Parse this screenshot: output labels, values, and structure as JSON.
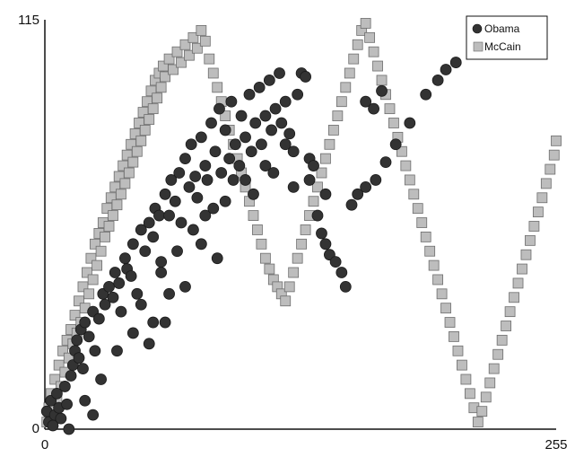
{
  "chart_data": {
    "type": "scatter",
    "title": "",
    "xlabel": "",
    "ylabel": "",
    "xlim": [
      0,
      255
    ],
    "ylim": [
      0,
      115
    ],
    "grid": false,
    "legend_position": "top-right",
    "x_ticks": [
      "0",
      "255"
    ],
    "y_ticks": [
      "115",
      "0"
    ],
    "series": [
      {
        "name": "Obama",
        "marker": "circle",
        "color": "#333333",
        "points": [
          [
            1,
            5
          ],
          [
            2,
            2
          ],
          [
            3,
            8
          ],
          [
            4,
            1
          ],
          [
            5,
            4
          ],
          [
            6,
            10
          ],
          [
            7,
            6
          ],
          [
            8,
            3
          ],
          [
            10,
            12
          ],
          [
            11,
            7
          ],
          [
            12,
            0
          ],
          [
            13,
            15
          ],
          [
            14,
            18
          ],
          [
            15,
            22
          ],
          [
            16,
            25
          ],
          [
            17,
            20
          ],
          [
            18,
            28
          ],
          [
            19,
            17
          ],
          [
            20,
            30
          ],
          [
            22,
            26
          ],
          [
            24,
            33
          ],
          [
            25,
            22
          ],
          [
            27,
            31
          ],
          [
            29,
            38
          ],
          [
            30,
            35
          ],
          [
            32,
            40
          ],
          [
            34,
            37
          ],
          [
            35,
            44
          ],
          [
            37,
            41
          ],
          [
            38,
            33
          ],
          [
            40,
            48
          ],
          [
            41,
            45
          ],
          [
            43,
            43
          ],
          [
            44,
            52
          ],
          [
            46,
            38
          ],
          [
            48,
            56
          ],
          [
            50,
            50
          ],
          [
            52,
            58
          ],
          [
            54,
            54
          ],
          [
            55,
            62
          ],
          [
            57,
            60
          ],
          [
            58,
            47
          ],
          [
            60,
            66
          ],
          [
            62,
            60
          ],
          [
            63,
            70
          ],
          [
            65,
            64
          ],
          [
            67,
            72
          ],
          [
            68,
            58
          ],
          [
            70,
            76
          ],
          [
            72,
            68
          ],
          [
            73,
            80
          ],
          [
            75,
            71
          ],
          [
            76,
            65
          ],
          [
            78,
            82
          ],
          [
            80,
            74
          ],
          [
            81,
            70
          ],
          [
            83,
            86
          ],
          [
            85,
            78
          ],
          [
            87,
            90
          ],
          [
            88,
            72
          ],
          [
            90,
            84
          ],
          [
            92,
            76
          ],
          [
            93,
            92
          ],
          [
            95,
            80
          ],
          [
            97,
            74
          ],
          [
            98,
            88
          ],
          [
            100,
            82
          ],
          [
            102,
            94
          ],
          [
            103,
            78
          ],
          [
            105,
            86
          ],
          [
            107,
            96
          ],
          [
            108,
            80
          ],
          [
            110,
            88
          ],
          [
            112,
            98
          ],
          [
            113,
            84
          ],
          [
            115,
            90
          ],
          [
            117,
            100
          ],
          [
            118,
            86
          ],
          [
            120,
            92
          ],
          [
            122,
            83
          ],
          [
            124,
            78
          ],
          [
            126,
            94
          ],
          [
            128,
            100
          ],
          [
            130,
            99
          ],
          [
            132,
            76
          ],
          [
            134,
            74
          ],
          [
            136,
            60
          ],
          [
            138,
            55
          ],
          [
            140,
            52
          ],
          [
            142,
            49
          ],
          [
            145,
            47
          ],
          [
            148,
            44
          ],
          [
            150,
            40
          ],
          [
            153,
            63
          ],
          [
            156,
            66
          ],
          [
            160,
            68
          ],
          [
            165,
            70
          ],
          [
            170,
            75
          ],
          [
            175,
            80
          ],
          [
            182,
            86
          ],
          [
            190,
            94
          ],
          [
            196,
            98
          ],
          [
            200,
            101
          ],
          [
            205,
            103
          ],
          [
            160,
            92
          ],
          [
            164,
            90
          ],
          [
            168,
            95
          ],
          [
            70,
            40
          ],
          [
            60,
            30
          ],
          [
            52,
            24
          ],
          [
            48,
            35
          ],
          [
            58,
            44
          ],
          [
            66,
            50
          ],
          [
            74,
            56
          ],
          [
            84,
            62
          ],
          [
            94,
            70
          ],
          [
            104,
            66
          ],
          [
            114,
            72
          ],
          [
            124,
            68
          ],
          [
            132,
            70
          ],
          [
            140,
            66
          ],
          [
            80,
            60
          ],
          [
            90,
            64
          ],
          [
            100,
            70
          ],
          [
            110,
            74
          ],
          [
            120,
            80
          ],
          [
            86,
            48
          ],
          [
            78,
            52
          ],
          [
            62,
            38
          ],
          [
            54,
            30
          ],
          [
            44,
            27
          ],
          [
            36,
            22
          ],
          [
            28,
            14
          ],
          [
            20,
            8
          ],
          [
            24,
            4
          ]
        ]
      },
      {
        "name": "McCain",
        "marker": "square",
        "color": "#bdbdbd",
        "points": [
          [
            1,
            2
          ],
          [
            2,
            6
          ],
          [
            3,
            10
          ],
          [
            4,
            4
          ],
          [
            5,
            14
          ],
          [
            6,
            8
          ],
          [
            7,
            18
          ],
          [
            8,
            12
          ],
          [
            9,
            22
          ],
          [
            10,
            16
          ],
          [
            11,
            25
          ],
          [
            12,
            20
          ],
          [
            13,
            28
          ],
          [
            14,
            24
          ],
          [
            15,
            32
          ],
          [
            16,
            27
          ],
          [
            17,
            36
          ],
          [
            18,
            30
          ],
          [
            19,
            40
          ],
          [
            20,
            34
          ],
          [
            21,
            44
          ],
          [
            22,
            38
          ],
          [
            23,
            48
          ],
          [
            24,
            42
          ],
          [
            25,
            52
          ],
          [
            26,
            46
          ],
          [
            27,
            55
          ],
          [
            28,
            50
          ],
          [
            29,
            58
          ],
          [
            30,
            54
          ],
          [
            31,
            62
          ],
          [
            32,
            57
          ],
          [
            33,
            65
          ],
          [
            34,
            60
          ],
          [
            35,
            68
          ],
          [
            36,
            63
          ],
          [
            37,
            71
          ],
          [
            38,
            66
          ],
          [
            39,
            74
          ],
          [
            40,
            69
          ],
          [
            41,
            77
          ],
          [
            42,
            72
          ],
          [
            43,
            80
          ],
          [
            44,
            75
          ],
          [
            45,
            83
          ],
          [
            46,
            78
          ],
          [
            47,
            86
          ],
          [
            48,
            81
          ],
          [
            49,
            89
          ],
          [
            50,
            84
          ],
          [
            51,
            92
          ],
          [
            52,
            87
          ],
          [
            53,
            95
          ],
          [
            54,
            90
          ],
          [
            55,
            98
          ],
          [
            56,
            93
          ],
          [
            57,
            100
          ],
          [
            58,
            96
          ],
          [
            59,
            102
          ],
          [
            60,
            99
          ],
          [
            62,
            104
          ],
          [
            64,
            101
          ],
          [
            66,
            106
          ],
          [
            68,
            103
          ],
          [
            70,
            108
          ],
          [
            72,
            105
          ],
          [
            74,
            110
          ],
          [
            76,
            107
          ],
          [
            78,
            112
          ],
          [
            80,
            109
          ],
          [
            82,
            104
          ],
          [
            84,
            100
          ],
          [
            86,
            96
          ],
          [
            88,
            92
          ],
          [
            90,
            88
          ],
          [
            92,
            84
          ],
          [
            94,
            80
          ],
          [
            96,
            76
          ],
          [
            98,
            72
          ],
          [
            100,
            68
          ],
          [
            102,
            64
          ],
          [
            104,
            60
          ],
          [
            106,
            56
          ],
          [
            108,
            52
          ],
          [
            110,
            48
          ],
          [
            112,
            45
          ],
          [
            114,
            42
          ],
          [
            116,
            40
          ],
          [
            118,
            38
          ],
          [
            120,
            36
          ],
          [
            122,
            40
          ],
          [
            124,
            44
          ],
          [
            126,
            48
          ],
          [
            128,
            52
          ],
          [
            130,
            56
          ],
          [
            132,
            60
          ],
          [
            134,
            64
          ],
          [
            136,
            68
          ],
          [
            138,
            72
          ],
          [
            140,
            76
          ],
          [
            142,
            80
          ],
          [
            144,
            84
          ],
          [
            146,
            88
          ],
          [
            148,
            92
          ],
          [
            150,
            96
          ],
          [
            152,
            100
          ],
          [
            154,
            104
          ],
          [
            156,
            108
          ],
          [
            158,
            112
          ],
          [
            160,
            114
          ],
          [
            162,
            110
          ],
          [
            164,
            106
          ],
          [
            166,
            102
          ],
          [
            168,
            98
          ],
          [
            170,
            94
          ],
          [
            172,
            90
          ],
          [
            174,
            86
          ],
          [
            176,
            82
          ],
          [
            178,
            78
          ],
          [
            180,
            74
          ],
          [
            182,
            70
          ],
          [
            184,
            66
          ],
          [
            186,
            62
          ],
          [
            188,
            58
          ],
          [
            190,
            54
          ],
          [
            192,
            50
          ],
          [
            194,
            46
          ],
          [
            196,
            42
          ],
          [
            198,
            38
          ],
          [
            200,
            34
          ],
          [
            202,
            30
          ],
          [
            204,
            26
          ],
          [
            206,
            22
          ],
          [
            208,
            18
          ],
          [
            210,
            14
          ],
          [
            212,
            10
          ],
          [
            214,
            6
          ],
          [
            216,
            2
          ],
          [
            218,
            5
          ],
          [
            220,
            9
          ],
          [
            222,
            13
          ],
          [
            224,
            17
          ],
          [
            226,
            21
          ],
          [
            228,
            25
          ],
          [
            230,
            29
          ],
          [
            232,
            33
          ],
          [
            234,
            37
          ],
          [
            236,
            41
          ],
          [
            238,
            45
          ],
          [
            240,
            49
          ],
          [
            242,
            53
          ],
          [
            244,
            57
          ],
          [
            246,
            61
          ],
          [
            248,
            65
          ],
          [
            250,
            69
          ],
          [
            252,
            73
          ],
          [
            254,
            77
          ],
          [
            255,
            81
          ]
        ]
      }
    ]
  }
}
